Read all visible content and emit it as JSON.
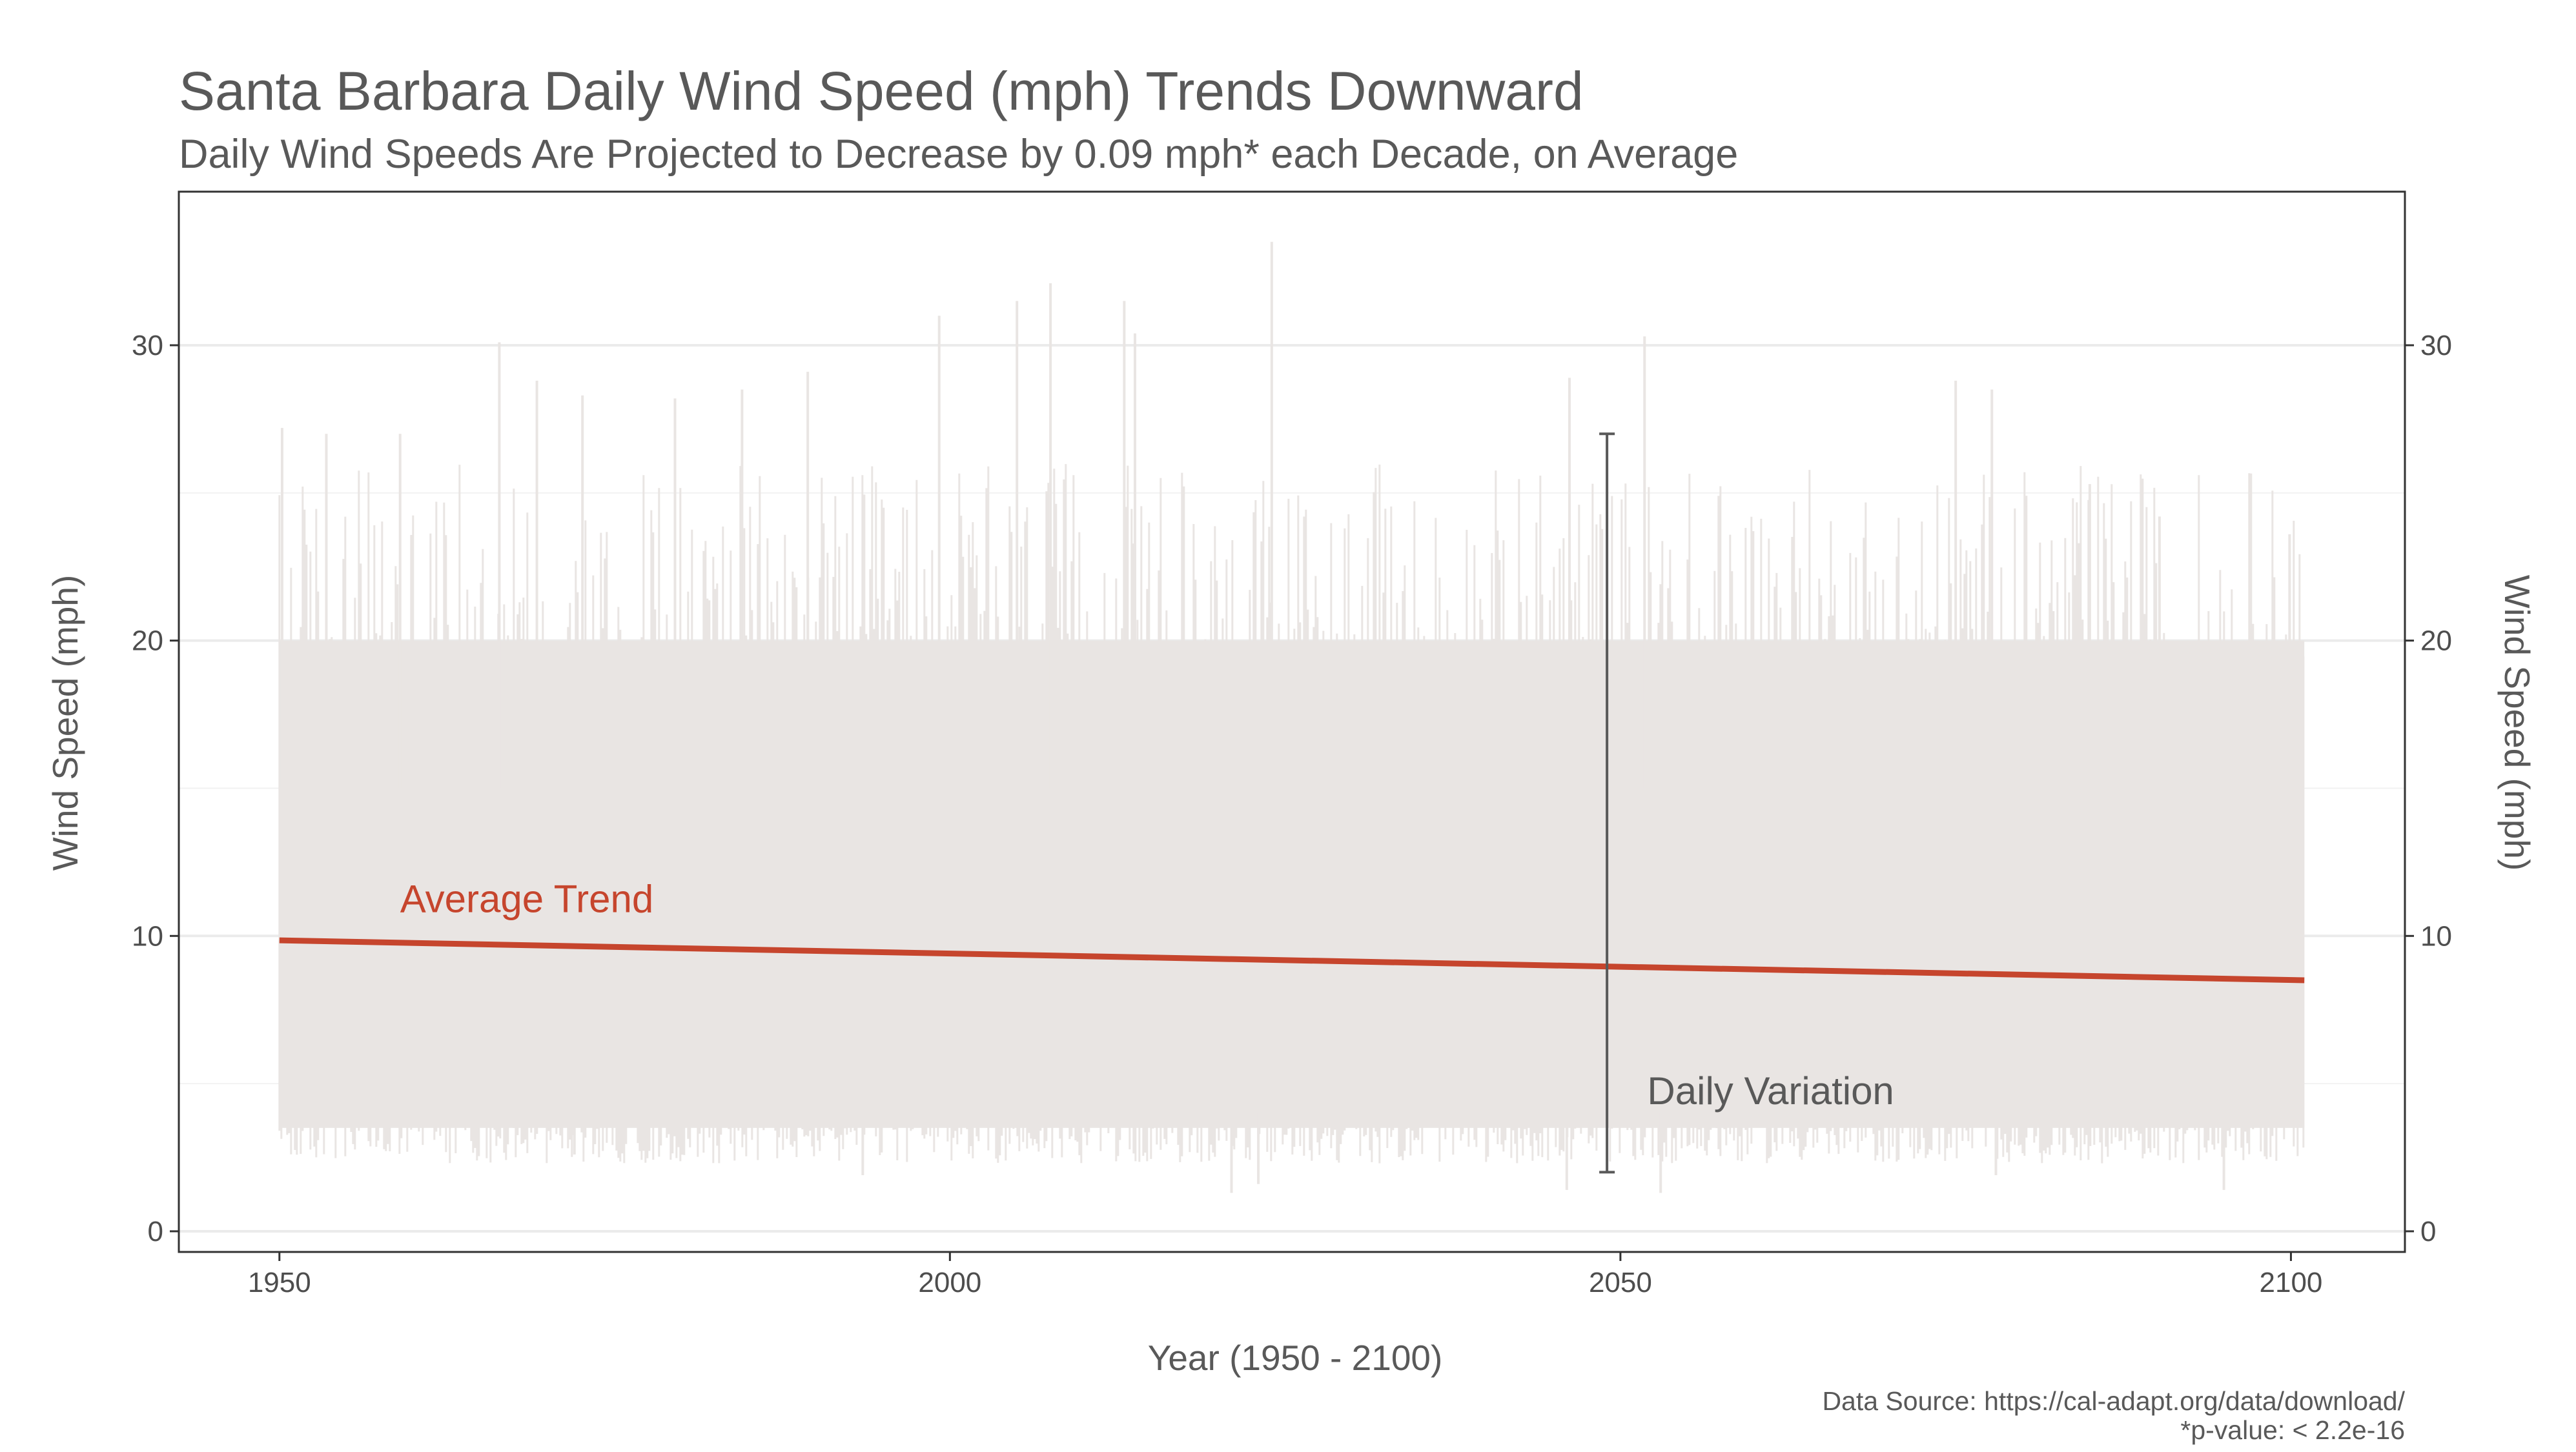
{
  "chart_data": {
    "type": "line",
    "title": "Santa Barbara Daily Wind Speed (mph) Trends Downward",
    "subtitle": "Daily Wind Speeds Are Projected to Decrease by 0.09 mph* each Decade, on Average",
    "xlabel": "Year (1950 - 2100)",
    "ylabel": "Wind Speed (mph)",
    "ylabel_right": "Wind Speed (mph)",
    "xlim": [
      1942.5,
      2108.5
    ],
    "ylim": [
      -0.7,
      35.2
    ],
    "x_ticks": [
      1950,
      2000,
      2050,
      2100
    ],
    "x_tick_labels": [
      "1950",
      "2000",
      "2050",
      "2100"
    ],
    "y_ticks": [
      0,
      10,
      20,
      30
    ],
    "y_tick_labels": [
      "0",
      "10",
      "20",
      "30"
    ],
    "y_minor_gridlines": [
      5,
      15,
      25
    ],
    "grid": true,
    "series": [
      {
        "role": "daily wind speed",
        "color": "#E9E5E3",
        "x_range": [
          1950,
          2101
        ],
        "typical_low": 3.5,
        "typical_high": 20,
        "absolute_min": 1.0,
        "absolute_max": 33.5,
        "peaks": [
          [
            1950.2,
            27.2
          ],
          [
            1953.5,
            27.0
          ],
          [
            1959,
            27.0
          ],
          [
            1966.4,
            30.1
          ],
          [
            1969.2,
            28.8
          ],
          [
            1972.6,
            28.3
          ],
          [
            1979.5,
            28.2
          ],
          [
            1984.5,
            28.5
          ],
          [
            1989.4,
            29.1
          ],
          [
            1999.2,
            31.0
          ],
          [
            2005,
            31.5
          ],
          [
            2007.5,
            32.1
          ],
          [
            2013,
            31.5
          ],
          [
            2013.8,
            30.4
          ],
          [
            2024,
            33.5
          ],
          [
            2046.2,
            28.9
          ],
          [
            2051.8,
            30.3
          ],
          [
            2075,
            28.8
          ],
          [
            2077.7,
            28.5
          ],
          [
            2085,
            25.3
          ],
          [
            2090.2,
            24.2
          ],
          [
            2099.9,
            23.6
          ]
        ],
        "troughs": [
          [
            1972,
            2.6
          ],
          [
            1993.5,
            1.9
          ],
          [
            2021,
            1.3
          ],
          [
            2023,
            1.6
          ],
          [
            2046,
            1.4
          ],
          [
            2053,
            1.3
          ],
          [
            2078,
            1.9
          ],
          [
            2095,
            1.4
          ]
        ]
      },
      {
        "name": "Average Trend",
        "color": "#C6452D",
        "x": [
          1950,
          2101
        ],
        "y": [
          9.85,
          8.5
        ]
      }
    ],
    "annotations": {
      "trend_label": "Average Trend",
      "variation_label": "Daily Variation",
      "variation_bar": {
        "x": 2049,
        "low": 2.0,
        "high": 27.0
      }
    },
    "caption": {
      "line1": "Data Source: https://cal-adapt.org/data/download/",
      "line2": "*p-value: < 2.2e-16"
    }
  }
}
